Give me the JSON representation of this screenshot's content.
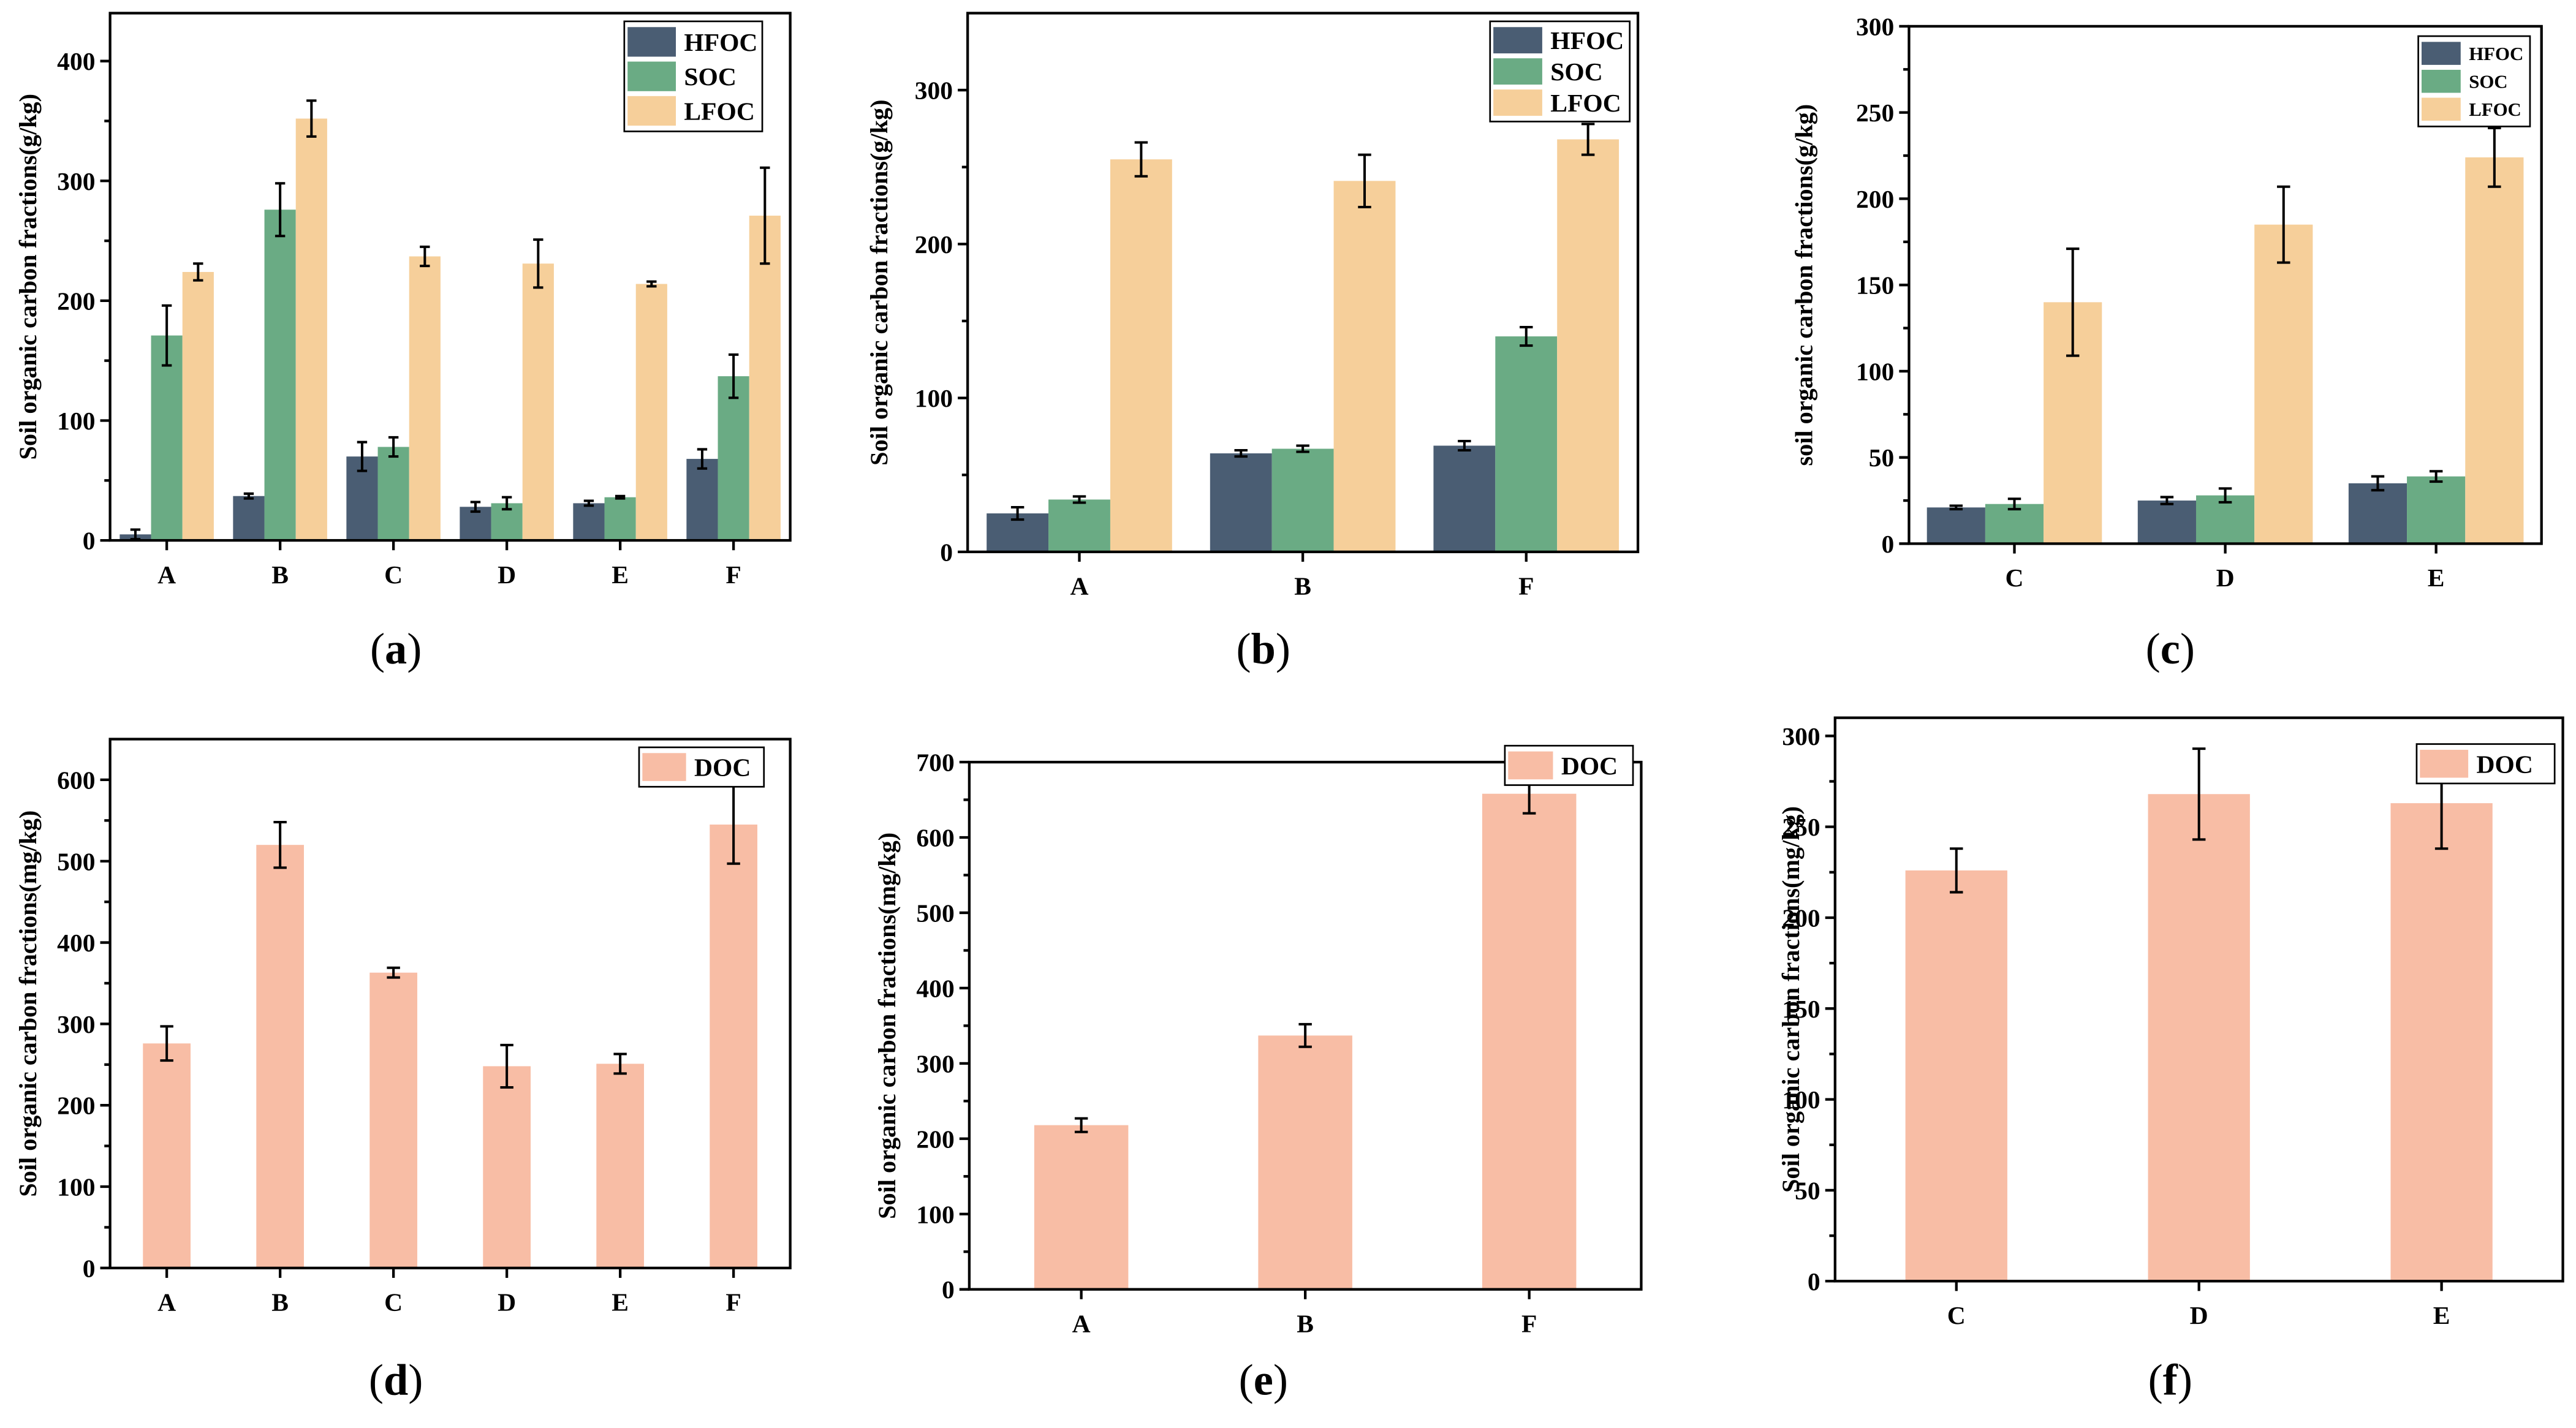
{
  "colors": {
    "HFOC": "#4a5d73",
    "SOC": "#6aab84",
    "LFOC": "#f6cf9a",
    "DOC": "#f8bda5",
    "error": "#000000",
    "axis": "#000000"
  },
  "chart_data": [
    {
      "id": "a",
      "panel_label": "(a)",
      "type": "bar",
      "title": "",
      "xlabel": "",
      "ylabel": "Soil organic carbon fractions(g/kg)",
      "categories": [
        "A",
        "B",
        "C",
        "D",
        "E",
        "F"
      ],
      "ylim": [
        0,
        440
      ],
      "yticks": [
        0,
        100,
        200,
        300,
        400
      ],
      "legend_position": "top-right",
      "series": [
        {
          "name": "HFOC",
          "values": [
            5,
            37,
            70,
            28,
            31,
            68
          ],
          "errors": [
            4,
            2,
            12,
            4,
            2,
            8
          ]
        },
        {
          "name": "SOC",
          "values": [
            171,
            276,
            78,
            31,
            36,
            137
          ],
          "errors": [
            25,
            22,
            8,
            5,
            1,
            18
          ]
        },
        {
          "name": "LFOC",
          "values": [
            224,
            352,
            237,
            231,
            214,
            271
          ],
          "errors": [
            7,
            15,
            8,
            20,
            2,
            40
          ]
        }
      ]
    },
    {
      "id": "b",
      "panel_label": "(b)",
      "type": "bar",
      "title": "",
      "xlabel": "",
      "ylabel": "Soil organic carbon fractions(g/kg)",
      "categories": [
        "A",
        "B",
        "F"
      ],
      "ylim": [
        0,
        350
      ],
      "yticks": [
        0,
        100,
        200,
        300
      ],
      "legend_position": "top-right",
      "series": [
        {
          "name": "HFOC",
          "values": [
            25,
            64,
            69
          ],
          "errors": [
            4,
            2,
            3
          ]
        },
        {
          "name": "SOC",
          "values": [
            34,
            67,
            140
          ],
          "errors": [
            2,
            2,
            6
          ]
        },
        {
          "name": "LFOC",
          "values": [
            255,
            241,
            268
          ],
          "errors": [
            11,
            17,
            10
          ]
        }
      ]
    },
    {
      "id": "c",
      "panel_label": "(c)",
      "type": "bar",
      "title": "",
      "xlabel": "",
      "ylabel": "soil organic carbon fractions(g/kg)",
      "categories": [
        "C",
        "D",
        "E"
      ],
      "ylim": [
        0,
        300
      ],
      "yticks": [
        0,
        50,
        100,
        150,
        200,
        250,
        300
      ],
      "legend_position": "top-right",
      "series": [
        {
          "name": "HFOC",
          "values": [
            21,
            25,
            35
          ],
          "errors": [
            1,
            2,
            4
          ]
        },
        {
          "name": "SOC",
          "values": [
            23,
            28,
            39
          ],
          "errors": [
            3,
            4,
            3
          ]
        },
        {
          "name": "LFOC",
          "values": [
            140,
            185,
            224
          ],
          "errors": [
            31,
            22,
            17
          ]
        }
      ]
    },
    {
      "id": "d",
      "panel_label": "(d)",
      "type": "bar",
      "title": "",
      "xlabel": "",
      "ylabel": "Soil organic carbon fractions(mg/kg)",
      "categories": [
        "A",
        "B",
        "C",
        "D",
        "E",
        "F"
      ],
      "ylim": [
        0,
        650
      ],
      "yticks": [
        0,
        100,
        200,
        300,
        400,
        500,
        600
      ],
      "legend_position": "top-right",
      "series": [
        {
          "name": "DOC",
          "values": [
            276,
            520,
            363,
            248,
            251,
            545
          ],
          "errors": [
            21,
            28,
            6,
            26,
            12,
            48
          ]
        }
      ]
    },
    {
      "id": "e",
      "panel_label": "(e)",
      "type": "bar",
      "title": "",
      "xlabel": "",
      "ylabel": "Soil organic carbon fractions(mg/kg)",
      "categories": [
        "A",
        "B",
        "F"
      ],
      "ylim": [
        0,
        700
      ],
      "yticks": [
        0,
        100,
        200,
        300,
        400,
        500,
        600,
        700
      ],
      "legend_position": "top-right",
      "series": [
        {
          "name": "DOC",
          "values": [
            218,
            337,
            658
          ],
          "errors": [
            9,
            15,
            26
          ]
        }
      ]
    },
    {
      "id": "f",
      "panel_label": "(f)",
      "type": "bar",
      "title": "",
      "xlabel": "",
      "ylabel": "Soil organic carbon fractions(mg/kg)",
      "categories": [
        "C",
        "D",
        "E"
      ],
      "ylim": [
        0,
        310
      ],
      "yticks": [
        0,
        50,
        100,
        150,
        200,
        250,
        300
      ],
      "legend_position": "top-right",
      "series": [
        {
          "name": "DOC",
          "values": [
            226,
            268,
            263
          ],
          "errors": [
            12,
            25,
            25
          ]
        }
      ]
    }
  ]
}
